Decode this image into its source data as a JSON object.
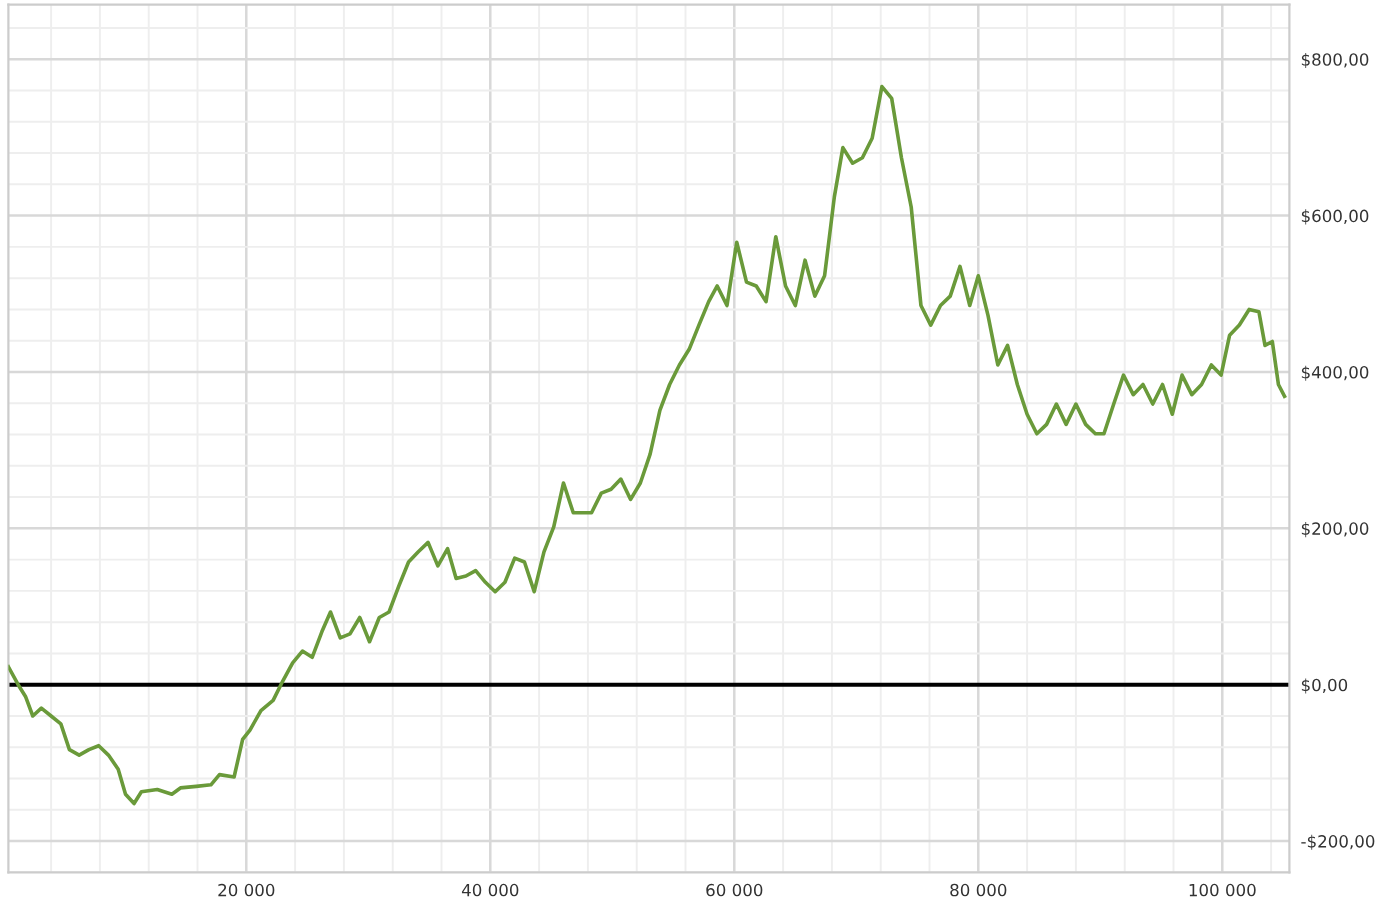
{
  "chart_data": {
    "type": "line",
    "x": [
      500,
      1300,
      1900,
      2500,
      3200,
      4000,
      4800,
      5500,
      6300,
      7100,
      7900,
      8700,
      9500,
      10100,
      10800,
      11400,
      12700,
      13900,
      14600,
      15900,
      17100,
      17800,
      19000,
      19700,
      20300,
      21200,
      22200,
      23000,
      23800,
      24600,
      25400,
      26200,
      26900,
      27700,
      28500,
      29300,
      30100,
      30900,
      31700,
      32500,
      33300,
      34100,
      34900,
      35700,
      36500,
      37200,
      38000,
      38800,
      39600,
      40400,
      41200,
      42000,
      42800,
      43600,
      44400,
      45200,
      46000,
      46800,
      47600,
      48300,
      49100,
      49900,
      50700,
      51500,
      52300,
      53100,
      53900,
      54700,
      55500,
      56300,
      57100,
      57900,
      58600,
      59400,
      60200,
      61000,
      61800,
      62600,
      63400,
      64200,
      65000,
      65800,
      66600,
      67400,
      68200,
      68900,
      69700,
      70500,
      71300,
      72100,
      72900,
      73700,
      74500,
      75300,
      76100,
      76900,
      77700,
      78500,
      79300,
      80000,
      80800,
      81600,
      82400,
      83200,
      84000,
      84800,
      85600,
      86400,
      87200,
      88000,
      88800,
      89600,
      90300,
      91100,
      91900,
      92700,
      93500,
      94300,
      95100,
      95900,
      96700,
      97500,
      98300,
      99100,
      99900,
      100600,
      101400,
      102200,
      103000,
      103500,
      104100,
      104600,
      105100
    ],
    "series": [
      {
        "color": "#6a9a3a",
        "values": [
          23,
          0,
          -15,
          -40,
          -30,
          -40,
          -50,
          -83,
          -90,
          -83,
          -78,
          -90,
          -108,
          -140,
          -152,
          -137,
          -134,
          -140,
          -132,
          -130,
          -128,
          -115,
          -118,
          -70,
          -58,
          -33,
          -20,
          5,
          28,
          43,
          35,
          68,
          93,
          60,
          65,
          86,
          55,
          86,
          93,
          126,
          157,
          170,
          182,
          152,
          174,
          136,
          139,
          146,
          131,
          119,
          131,
          162,
          157,
          119,
          170,
          202,
          258,
          220,
          220,
          220,
          245,
          250,
          263,
          237,
          258,
          295,
          351,
          384,
          409,
          429,
          460,
          490,
          510,
          485,
          566,
          515,
          510,
          490,
          573,
          510,
          485,
          543,
          497,
          523,
          624,
          687,
          667,
          674,
          699,
          765,
          750,
          674,
          611,
          485,
          460,
          485,
          497,
          535,
          485,
          523,
          472,
          409,
          434,
          384,
          346,
          321,
          333,
          359,
          333,
          359,
          333,
          321,
          321,
          359,
          396,
          371,
          384,
          359,
          384,
          346,
          396,
          371,
          384,
          409,
          396,
          447,
          460,
          480,
          477,
          434,
          439,
          384,
          369
        ]
      }
    ],
    "xlim": [
      500,
      105500
    ],
    "ylim": [
      -240,
      870
    ],
    "xticks": [
      {
        "value": 20000,
        "label": "20 000"
      },
      {
        "value": 40000,
        "label": "40 000"
      },
      {
        "value": 60000,
        "label": "60 000"
      },
      {
        "value": 80000,
        "label": "80 000"
      },
      {
        "value": 100000,
        "label": "100 000"
      }
    ],
    "yticks": [
      {
        "value": -200,
        "label": "-$200,00"
      },
      {
        "value": 0,
        "label": "$0,00"
      },
      {
        "value": 200,
        "label": "$200,00"
      },
      {
        "value": 400,
        "label": "$400,00"
      },
      {
        "value": 600,
        "label": "$600,00"
      },
      {
        "value": 800,
        "label": "$800,00"
      }
    ],
    "ref_lines": [
      {
        "axis": "y",
        "value": 0,
        "color": "#000000"
      }
    ],
    "grid": true,
    "line_style": "solid"
  }
}
